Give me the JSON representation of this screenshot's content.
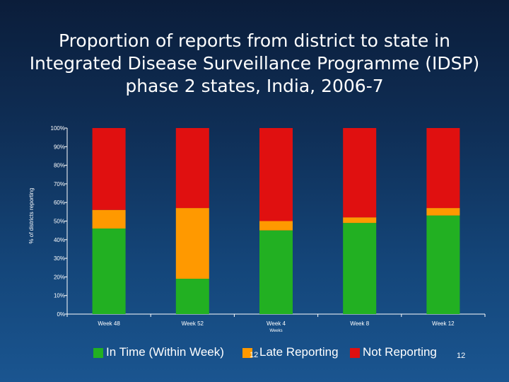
{
  "title": "Proportion of reports from district to state in Integrated Disease Surveillance Programme (IDSP) phase 2 states, India, 2006-7",
  "chart_data": {
    "type": "bar",
    "stacked": true,
    "categories": [
      "Week 48",
      "Week 52",
      "Week 4",
      "Week 8",
      "Week 12"
    ],
    "series": [
      {
        "name": "In Time (Within Week)",
        "color": "#22b022",
        "values": [
          46,
          19,
          45,
          49,
          53
        ]
      },
      {
        "name": "Late Reporting",
        "color": "#ff9900",
        "values": [
          10,
          38,
          5,
          3,
          4
        ]
      },
      {
        "name": "Not Reporting",
        "color": "#e01010",
        "values": [
          44,
          43,
          50,
          48,
          43
        ]
      }
    ],
    "xlabel": "Weeks",
    "ylabel": "% of districts reporting",
    "ylim": [
      0,
      100
    ],
    "yticks": [
      "0%",
      "10%",
      "20%",
      "30%",
      "40%",
      "50%",
      "60%",
      "70%",
      "80%",
      "90%",
      "100%"
    ],
    "legend_position": "bottom",
    "grid": false
  },
  "legend": {
    "in_time": "In Time (Within Week)",
    "in_time_suffix": "12",
    "late": "Late Reporting",
    "not_reporting": "Not Reporting"
  },
  "page_number": "12"
}
